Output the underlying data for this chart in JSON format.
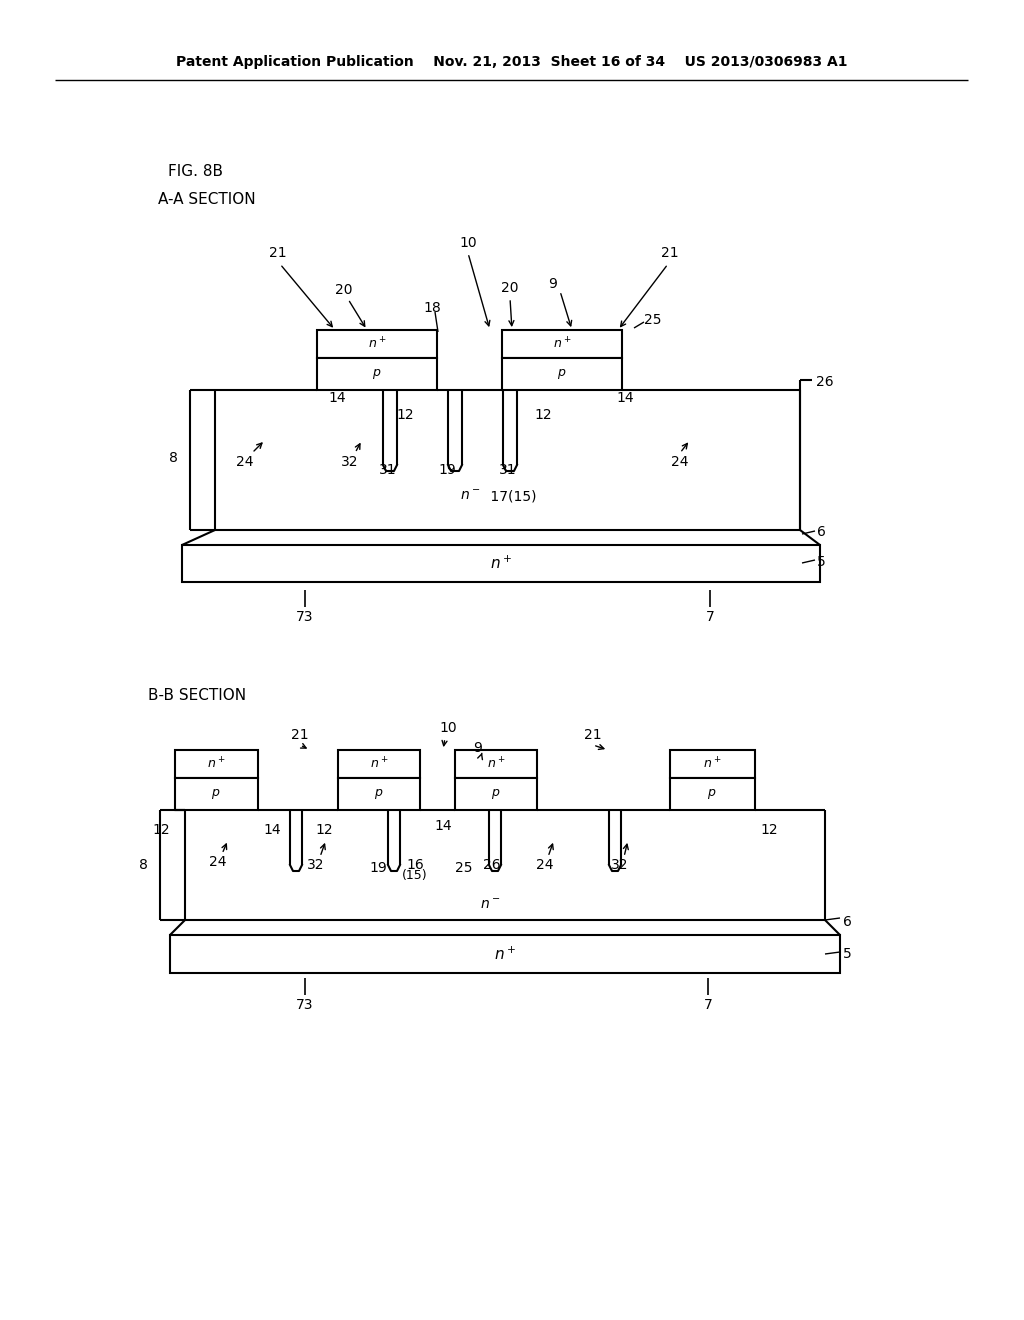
{
  "bg_color": "#ffffff",
  "header": "Patent Application Publication    Nov. 21, 2013  Sheet 16 of 34    US 2013/0306983 A1",
  "fig_label": "FIG. 8B",
  "aa_label": "A-A SECTION",
  "bb_label": "B-B SECTION"
}
